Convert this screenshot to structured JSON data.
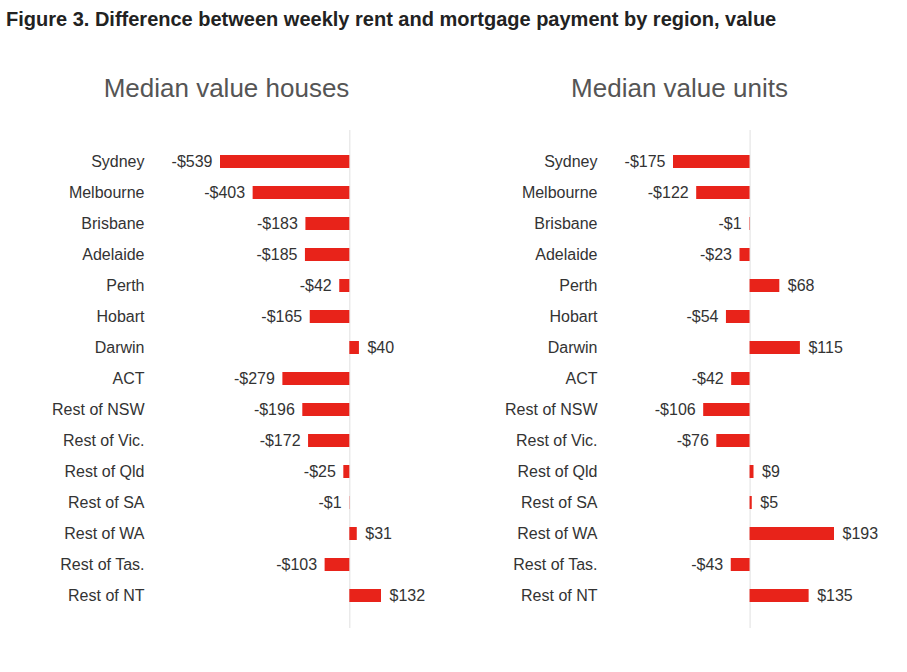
{
  "title": "Figure 3. Difference between weekly rent and mortgage payment by region, value",
  "chart_data": [
    {
      "type": "bar",
      "title": "Median value houses",
      "orientation": "horizontal",
      "categories": [
        "Sydney",
        "Melbourne",
        "Brisbane",
        "Adelaide",
        "Perth",
        "Hobart",
        "Darwin",
        "ACT",
        "Rest of NSW",
        "Rest of Vic.",
        "Rest of Qld",
        "Rest of SA",
        "Rest of WA",
        "Rest of Tas.",
        "Rest of NT"
      ],
      "values": [
        -539,
        -403,
        -183,
        -185,
        -42,
        -165,
        40,
        -279,
        -196,
        -172,
        -25,
        -1,
        31,
        -103,
        132
      ],
      "value_labels": [
        "-$539",
        "-$403",
        "-$183",
        "-$185",
        "-$42",
        "-$165",
        "$40",
        "-$279",
        "-$196",
        "-$172",
        "-$25",
        "-$1",
        "$31",
        "-$103",
        "$132"
      ],
      "color": "#e8231a",
      "data_labels": true,
      "tick_labels": "y"
    },
    {
      "type": "bar",
      "title": "Median value units",
      "orientation": "horizontal",
      "categories": [
        "Sydney",
        "Melbourne",
        "Brisbane",
        "Adelaide",
        "Perth",
        "Hobart",
        "Darwin",
        "ACT",
        "Rest of NSW",
        "Rest of Vic.",
        "Rest of Qld",
        "Rest of SA",
        "Rest of WA",
        "Rest of Tas.",
        "Rest of NT"
      ],
      "values": [
        -175,
        -122,
        -1,
        -23,
        68,
        -54,
        115,
        -42,
        -106,
        -76,
        9,
        5,
        193,
        -43,
        135
      ],
      "value_labels": [
        "-$175",
        "-$122",
        "-$1",
        "-$23",
        "$68",
        "-$54",
        "$115",
        "-$42",
        "-$106",
        "-$76",
        "$9",
        "$5",
        "$193",
        "-$43",
        "$135"
      ],
      "color": "#e8231a",
      "data_labels": true,
      "tick_labels": "y"
    }
  ]
}
